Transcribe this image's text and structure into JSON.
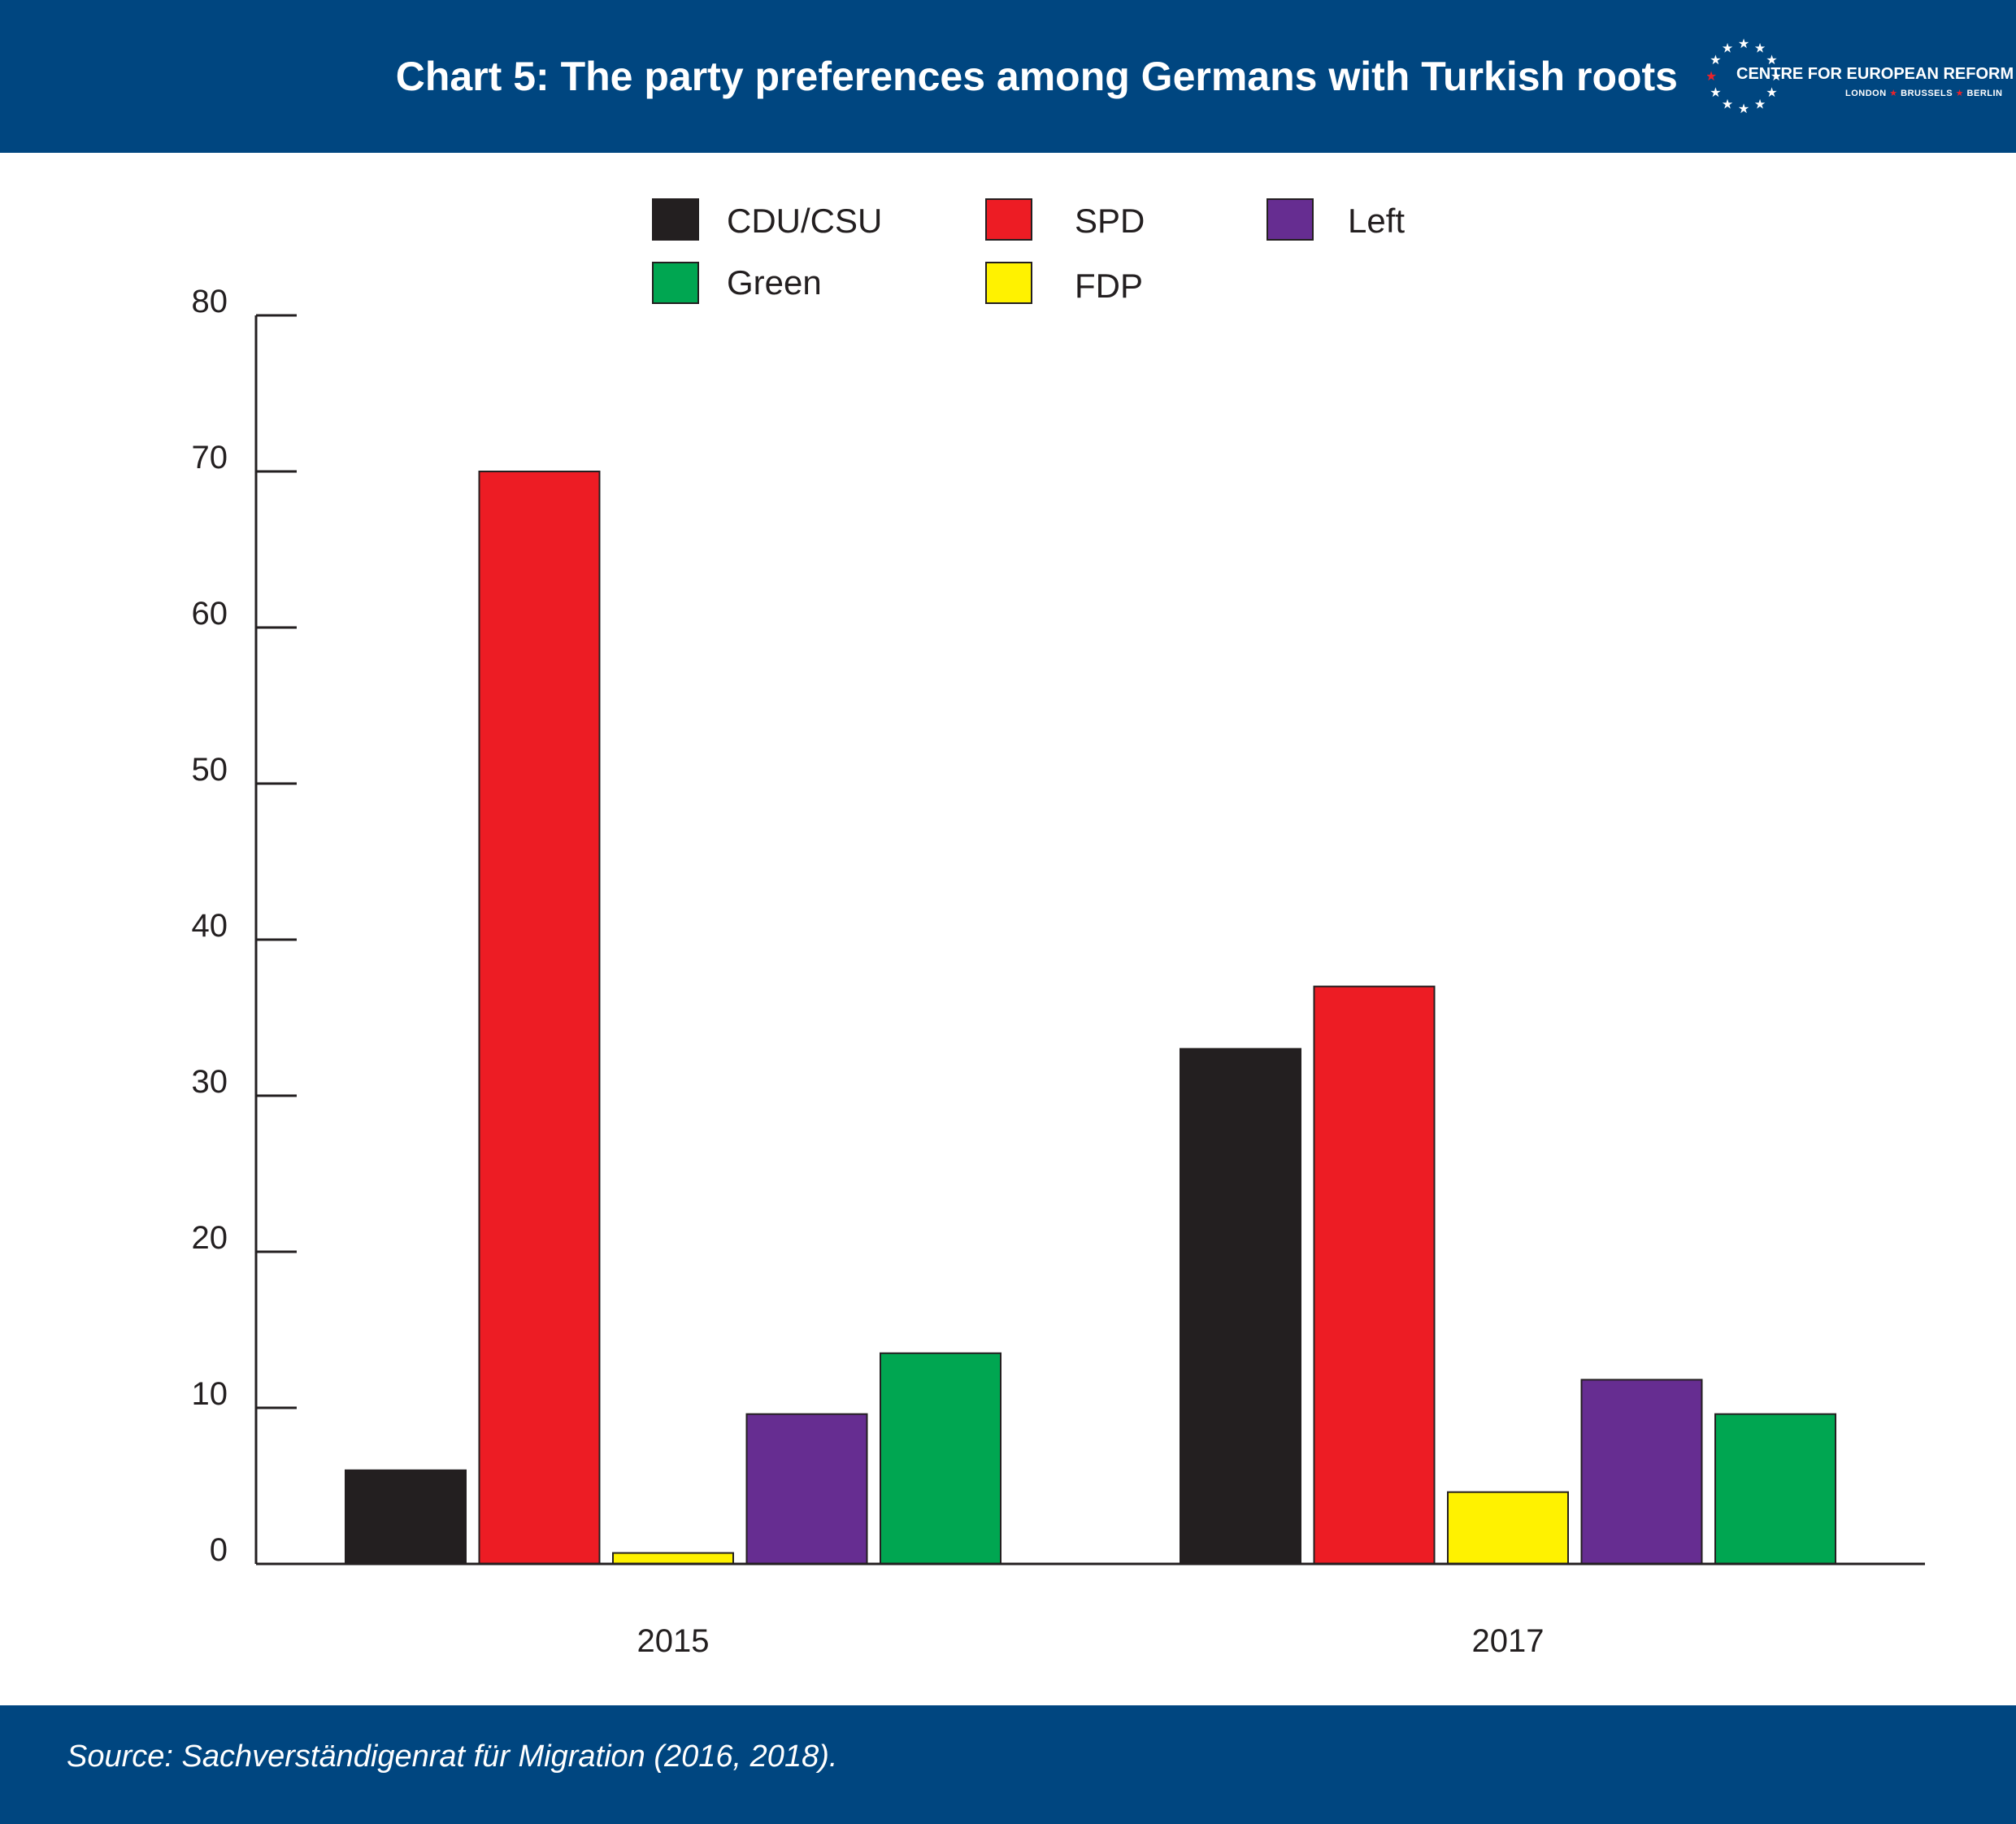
{
  "header": {
    "title": "Chart 5: The party preferences among Germans with Turkish roots",
    "background": "#004680",
    "logo": {
      "name": "CENTRE FOR EUROPEAN REFORM",
      "cities": [
        "LONDON",
        "BRUSSELS",
        "BERLIN"
      ],
      "star_color": "#ffffff",
      "accent_color": "#e9232b"
    }
  },
  "chart_data": {
    "type": "bar",
    "title": "Chart 5: The party preferences among Germans with Turkish roots",
    "xlabel": "",
    "ylabel": "",
    "categories": [
      "2015",
      "2017"
    ],
    "series": [
      {
        "name": "CDU/CSU",
        "color": "#231f20",
        "values": [
          6,
          33
        ]
      },
      {
        "name": "SPD",
        "color": "#ed1c24",
        "values": [
          70,
          37
        ]
      },
      {
        "name": "FDP",
        "color": "#fff200",
        "values": [
          0.7,
          4.6
        ]
      },
      {
        "name": "Left",
        "color": "#662d91",
        "values": [
          9.6,
          11.8
        ]
      },
      {
        "name": "Green",
        "color": "#00a651",
        "values": [
          13.5,
          9.6
        ]
      }
    ],
    "ylim": [
      0,
      80
    ],
    "yticks": [
      0,
      10,
      20,
      30,
      40,
      50,
      60,
      70,
      80
    ],
    "grid": false,
    "legend": {
      "placement": "top-center",
      "order": [
        "CDU/CSU",
        "SPD",
        "Left",
        "Green",
        "FDP"
      ]
    }
  },
  "footer": {
    "source": "Source: Sachverständigenrat für Migration (2016, 2018).",
    "background": "#004680"
  }
}
